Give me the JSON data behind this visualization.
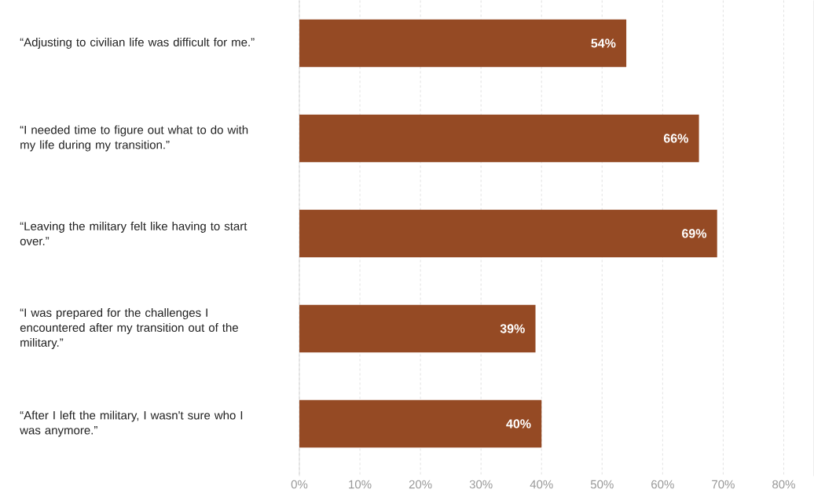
{
  "chart_data": {
    "type": "bar",
    "orientation": "horizontal",
    "categories": [
      "“Adjusting to civilian life was difficult for me.”",
      "“I needed time to figure out what to do with my life during my transition.”",
      "“Leaving the military felt like having to start over.”",
      "“I was prepared for the challenges I encountered after my transition out of the military.”",
      "“After I left the military, I wasn't sure who I was anymore.”"
    ],
    "values": [
      54,
      66,
      69,
      39,
      40
    ],
    "value_labels": [
      "54%",
      "66%",
      "69%",
      "39%",
      "40%"
    ],
    "color": "#954a24",
    "xlim": [
      0,
      85
    ],
    "xticks": [
      {
        "value": 0,
        "label": "0%"
      },
      {
        "value": 10,
        "label": "10%"
      },
      {
        "value": 20,
        "label": "20%"
      },
      {
        "value": 30,
        "label": "30%"
      },
      {
        "value": 40,
        "label": "40%"
      },
      {
        "value": 50,
        "label": "50%"
      },
      {
        "value": 60,
        "label": "60%"
      },
      {
        "value": 70,
        "label": "70%"
      },
      {
        "value": 80,
        "label": "80%"
      }
    ],
    "grid": "x"
  }
}
